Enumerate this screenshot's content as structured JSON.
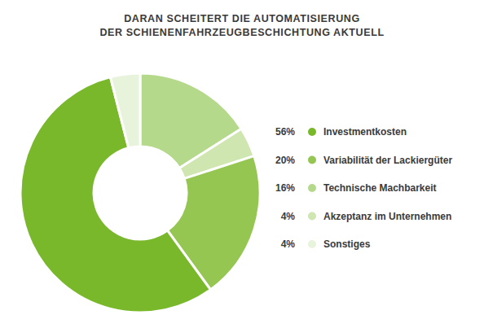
{
  "chart_data": {
    "type": "pie",
    "title": "DARAN SCHEITERT DIE AUTOMATISIERUNG\nDER SCHIENENFAHRZEUGBESCHICHTUNG AKTUELL",
    "categories": [
      "Investmentkosten",
      "Variabilität der Lackiergüter",
      "Technische Machbarkeit",
      "Akzeptanz im Unternehmen",
      "Sonstiges"
    ],
    "values": [
      56,
      20,
      16,
      4,
      4
    ],
    "value_labels": [
      "56%",
      "20%",
      "16%",
      "4%",
      "4%"
    ],
    "colors": [
      "#78b82a",
      "#94c651",
      "#b5d98a",
      "#cfe6b0",
      "#e8f3dc"
    ],
    "data_labels": true,
    "legend": "right"
  }
}
